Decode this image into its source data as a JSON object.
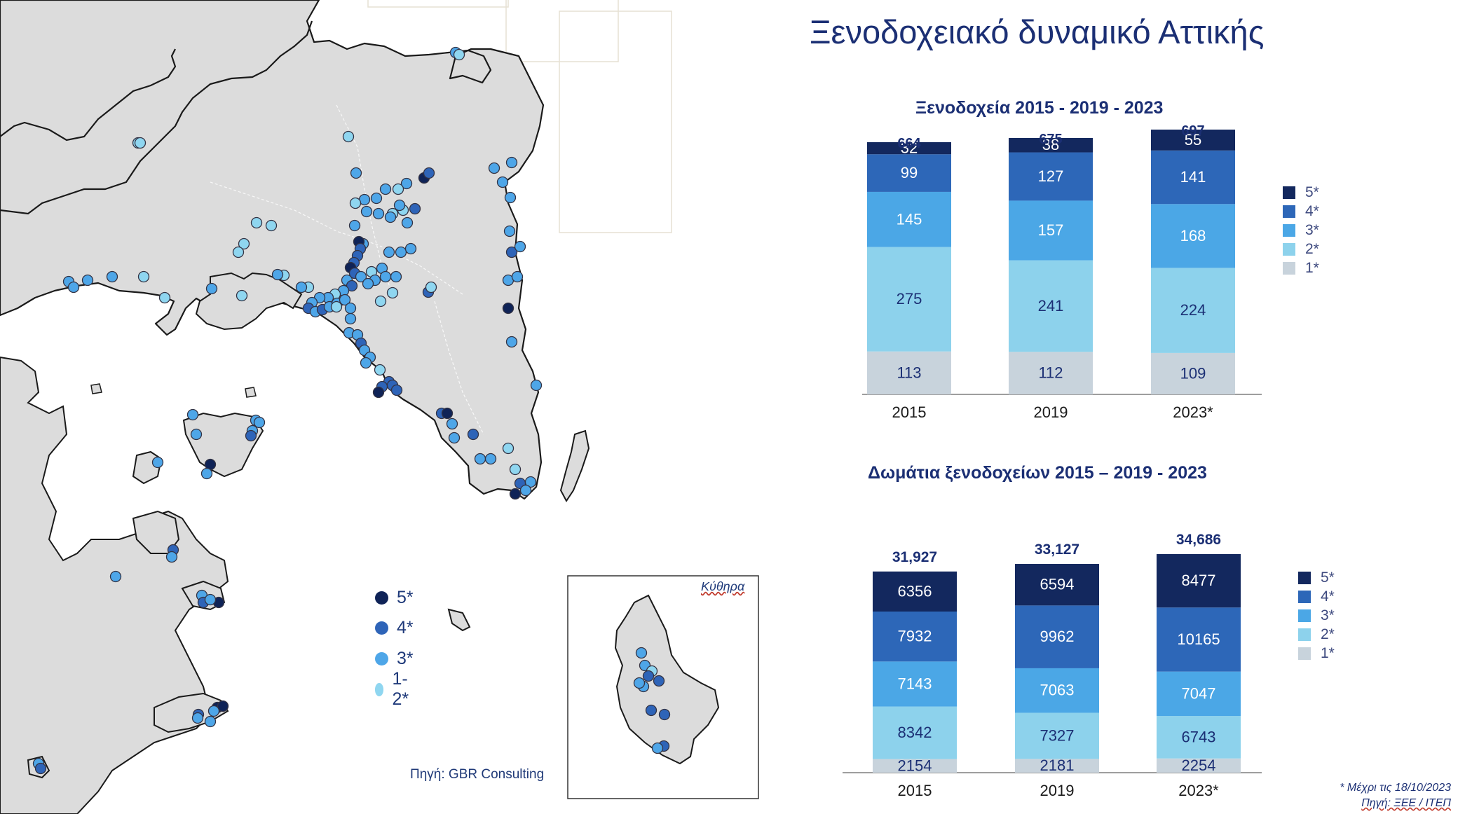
{
  "title": "Ξενοδοχειακό δυναμικό Αττικής",
  "map": {
    "legend": [
      {
        "label": "5*",
        "color": "#0f2357"
      },
      {
        "label": "4*",
        "color": "#2e64b8"
      },
      {
        "label": "3*",
        "color": "#4ea6e8"
      },
      {
        "label": "1-2*",
        "color": "#8fd6f0"
      }
    ],
    "source": "Πηγή: GBR Consulting",
    "inset_label": "Κύθηρα"
  },
  "colors": {
    "5*": "#13285e",
    "4*": "#2d67b8",
    "3*": "#4ba7e6",
    "2*": "#8dd2ec",
    "1*": "#c8d3dc"
  },
  "footnote": {
    "line1": "* Μέχρι τις 18/10/2023",
    "line2": "Πηγή: ΞΕΕ / ΙΤΕΠ"
  },
  "chart_data": [
    {
      "type": "bar",
      "stacked": true,
      "title": "Ξενοδοχεία 2015 - 2019 - 2023",
      "categories": [
        "2015",
        "2019",
        "2023*"
      ],
      "series": [
        {
          "name": "1*",
          "values": [
            113,
            112,
            109
          ]
        },
        {
          "name": "2*",
          "values": [
            275,
            241,
            224
          ]
        },
        {
          "name": "3*",
          "values": [
            145,
            157,
            168
          ]
        },
        {
          "name": "4*",
          "values": [
            99,
            127,
            141
          ]
        },
        {
          "name": "5*",
          "values": [
            32,
            38,
            55
          ]
        }
      ],
      "totals": [
        "664",
        "675",
        "697"
      ],
      "legend": [
        "5*",
        "4*",
        "3*",
        "2*",
        "1*"
      ],
      "legend_position": "right"
    },
    {
      "type": "bar",
      "stacked": true,
      "title": "Δωμάτια ξενοδοχείων 2015 – 2019 - 2023",
      "categories": [
        "2015",
        "2019",
        "2023*"
      ],
      "series": [
        {
          "name": "1*",
          "values": [
            2154,
            2181,
            2254
          ]
        },
        {
          "name": "2*",
          "values": [
            8342,
            7327,
            6743
          ]
        },
        {
          "name": "3*",
          "values": [
            7143,
            7063,
            7047
          ]
        },
        {
          "name": "4*",
          "values": [
            7932,
            9962,
            10165
          ]
        },
        {
          "name": "5*",
          "values": [
            6356,
            6594,
            8477
          ]
        }
      ],
      "totals": [
        "31,927",
        "33,127",
        "34,686"
      ],
      "legend": [
        "5*",
        "4*",
        "3*",
        "2*",
        "1*"
      ],
      "legend_position": "right"
    }
  ]
}
